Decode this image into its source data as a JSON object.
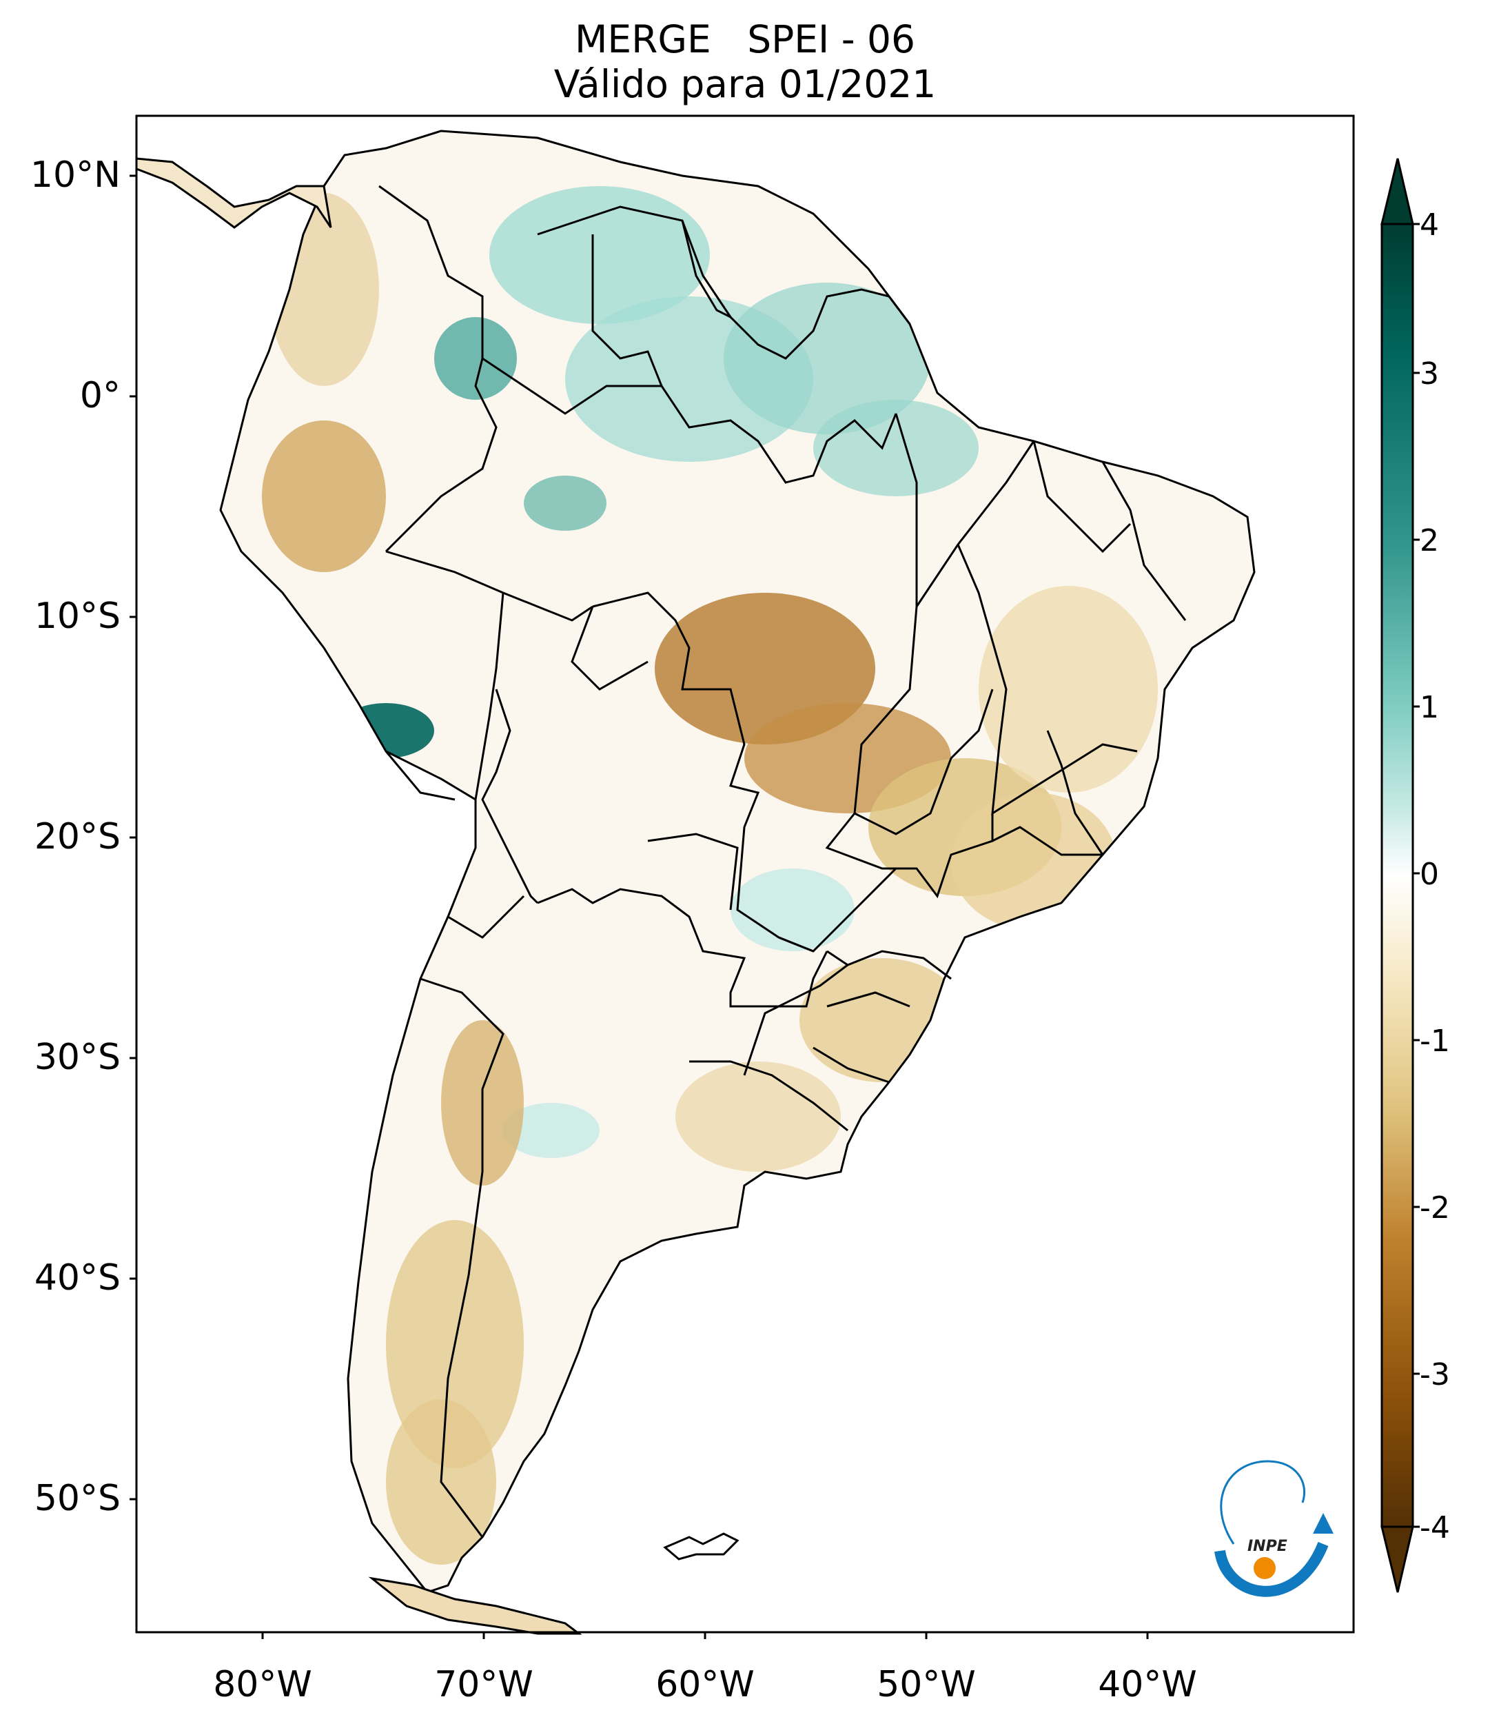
{
  "title": {
    "line1": "MERGE   SPEI - 06",
    "line2": "Válido para 01/2021"
  },
  "axes": {
    "lat_ticks": [
      "10°N",
      "0°",
      "10°S",
      "20°S",
      "30°S",
      "40°S",
      "50°S"
    ],
    "lon_ticks": [
      "80°W",
      "70°W",
      "60°W",
      "50°W",
      "40°W"
    ],
    "lon_range": [
      -85,
      -30
    ],
    "lat_range": [
      -56,
      13
    ]
  },
  "colorbar": {
    "ticks": [
      "4",
      "3",
      "2",
      "1",
      "0",
      "-1",
      "-2",
      "-3",
      "-4"
    ],
    "range": [
      -4,
      4
    ],
    "colors": [
      "#543005",
      "#8c510a",
      "#bf812d",
      "#dfc27d",
      "#f6e8c3",
      "#ffffff",
      "#c7eae5",
      "#80cdc1",
      "#35978f",
      "#01665e",
      "#003c30"
    ]
  },
  "logo": {
    "text": "INPE",
    "icon": "inpe-logo-icon"
  }
}
